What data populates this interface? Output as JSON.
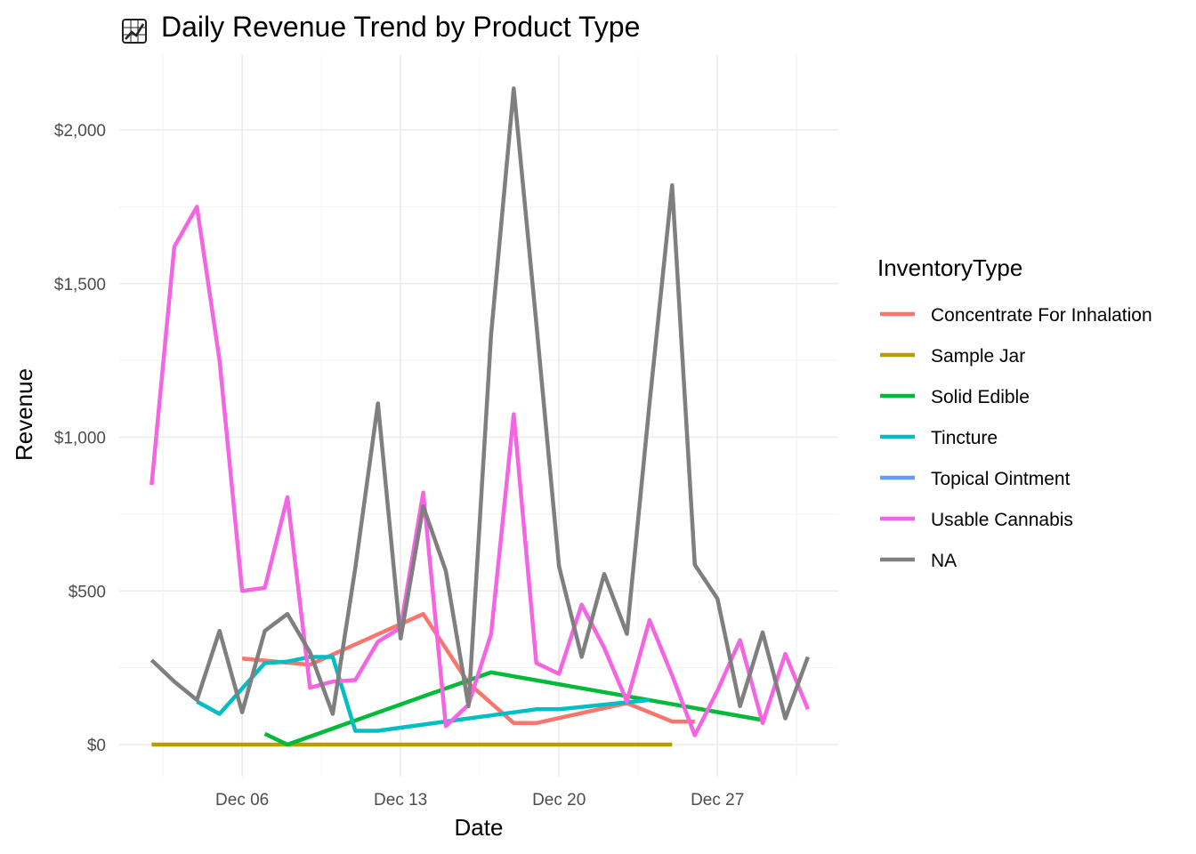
{
  "chart_data": {
    "type": "line",
    "title": "Daily Revenue Trend by Product Type",
    "title_icon": "chart-increasing-icon",
    "xlabel": "Date",
    "ylabel": "Revenue",
    "x_ticks": [
      "Dec 06",
      "Dec 13",
      "Dec 20",
      "Dec 27"
    ],
    "y_ticks": [
      "$0",
      "$500",
      "$1,000",
      "$1,500",
      "$2,000"
    ],
    "y_tick_values": [
      0,
      500,
      1000,
      1500,
      2000
    ],
    "x_range": [
      "2025-12-01",
      "2025-12-31"
    ],
    "ylim": [
      -100,
      2200
    ],
    "grid": true,
    "legend_title": "InventoryType",
    "legend_position": "right",
    "series": [
      {
        "name": "Concentrate For Inhalation",
        "color": "#F8766D",
        "points": [
          [
            "2025-12-06",
            280
          ],
          [
            "2025-12-09",
            260
          ],
          [
            "2025-12-14",
            425
          ],
          [
            "2025-12-16",
            200
          ],
          [
            "2025-12-18",
            70
          ],
          [
            "2025-12-19",
            70
          ],
          [
            "2025-12-23",
            135
          ],
          [
            "2025-12-25",
            75
          ],
          [
            "2025-12-26",
            75
          ]
        ]
      },
      {
        "name": "Sample Jar",
        "color": "#B79F00",
        "points": [
          [
            "2025-12-02",
            0
          ],
          [
            "2025-12-25",
            0
          ]
        ]
      },
      {
        "name": "Solid Edible",
        "color": "#00BA38",
        "points": [
          [
            "2025-12-07",
            35
          ],
          [
            "2025-12-08",
            0
          ],
          [
            "2025-12-17",
            235
          ],
          [
            "2025-12-29",
            80
          ]
        ]
      },
      {
        "name": "Tincture",
        "color": "#00BFC4",
        "points": [
          [
            "2025-12-04",
            140
          ],
          [
            "2025-12-05",
            100
          ],
          [
            "2025-12-07",
            265
          ],
          [
            "2025-12-08",
            270
          ],
          [
            "2025-12-09",
            285
          ],
          [
            "2025-12-10",
            285
          ],
          [
            "2025-12-11",
            45
          ],
          [
            "2025-12-12",
            45
          ],
          [
            "2025-12-14",
            65
          ],
          [
            "2025-12-17",
            95
          ],
          [
            "2025-12-19",
            115
          ],
          [
            "2025-12-20",
            115
          ],
          [
            "2025-12-24",
            145
          ]
        ]
      },
      {
        "name": "Topical Ointment",
        "color": "#619CFF",
        "points": []
      },
      {
        "name": "Usable Cannabis",
        "color": "#F564E3",
        "points": [
          [
            "2025-12-02",
            845
          ],
          [
            "2025-12-03",
            1620
          ],
          [
            "2025-12-04",
            1750
          ],
          [
            "2025-12-05",
            1250
          ],
          [
            "2025-12-06",
            500
          ],
          [
            "2025-12-07",
            510
          ],
          [
            "2025-12-08",
            805
          ],
          [
            "2025-12-09",
            185
          ],
          [
            "2025-12-10",
            205
          ],
          [
            "2025-12-11",
            210
          ],
          [
            "2025-12-12",
            335
          ],
          [
            "2025-12-13",
            380
          ],
          [
            "2025-12-14",
            820
          ],
          [
            "2025-12-15",
            60
          ],
          [
            "2025-12-16",
            130
          ],
          [
            "2025-12-17",
            360
          ],
          [
            "2025-12-18",
            1075
          ],
          [
            "2025-12-19",
            265
          ],
          [
            "2025-12-20",
            230
          ],
          [
            "2025-12-21",
            455
          ],
          [
            "2025-12-22",
            315
          ],
          [
            "2025-12-23",
            140
          ],
          [
            "2025-12-24",
            405
          ],
          [
            "2025-12-25",
            225
          ],
          [
            "2025-12-26",
            30
          ],
          [
            "2025-12-27",
            175
          ],
          [
            "2025-12-28",
            340
          ],
          [
            "2025-12-29",
            70
          ],
          [
            "2025-12-30",
            295
          ],
          [
            "2025-12-31",
            115
          ]
        ]
      },
      {
        "name": "NA",
        "color": "#7F7F7F",
        "points": [
          [
            "2025-12-02",
            275
          ],
          [
            "2025-12-03",
            205
          ],
          [
            "2025-12-04",
            145
          ],
          [
            "2025-12-05",
            370
          ],
          [
            "2025-12-06",
            105
          ],
          [
            "2025-12-07",
            370
          ],
          [
            "2025-12-08",
            425
          ],
          [
            "2025-12-09",
            300
          ],
          [
            "2025-12-10",
            100
          ],
          [
            "2025-12-11",
            575
          ],
          [
            "2025-12-12",
            1110
          ],
          [
            "2025-12-13",
            345
          ],
          [
            "2025-12-14",
            775
          ],
          [
            "2025-12-15",
            565
          ],
          [
            "2025-12-16",
            125
          ],
          [
            "2025-12-17",
            1335
          ],
          [
            "2025-12-18",
            2135
          ],
          [
            "2025-12-19",
            1370
          ],
          [
            "2025-12-20",
            580
          ],
          [
            "2025-12-21",
            285
          ],
          [
            "2025-12-22",
            555
          ],
          [
            "2025-12-23",
            360
          ],
          [
            "2025-12-24",
            1110
          ],
          [
            "2025-12-25",
            1820
          ],
          [
            "2025-12-26",
            585
          ],
          [
            "2025-12-27",
            475
          ],
          [
            "2025-12-28",
            125
          ],
          [
            "2025-12-29",
            365
          ],
          [
            "2025-12-30",
            85
          ],
          [
            "2025-12-31",
            285
          ]
        ]
      }
    ]
  }
}
